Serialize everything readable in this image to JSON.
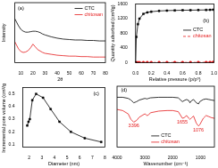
{
  "chart_data": [
    {
      "type": "line",
      "x": [
        5,
        8,
        10,
        12,
        14,
        16,
        18,
        20,
        22,
        24,
        26,
        28,
        30,
        35,
        40,
        45,
        50,
        55,
        60,
        65,
        70,
        75,
        80
      ],
      "series": [
        {
          "name": "CTC",
          "color": "#000000",
          "values": [
            95,
            80,
            72,
            68,
            66,
            66,
            67,
            68,
            68,
            67,
            65,
            62,
            60,
            56,
            53,
            51,
            50,
            49,
            49,
            48,
            48,
            47,
            47
          ]
        },
        {
          "name": "chitosan",
          "color": "#e41a1c",
          "values": [
            45,
            30,
            24,
            22,
            23,
            26,
            32,
            40,
            34,
            28,
            25,
            22,
            20,
            18,
            16,
            15,
            14,
            14,
            13,
            13,
            12,
            12,
            12
          ]
        }
      ],
      "x_label": "2θ",
      "y_label": "Intensity",
      "xlim": [
        5,
        80
      ],
      "xticks": [
        10,
        20,
        30,
        40,
        50,
        60,
        70,
        80
      ],
      "ylim": [
        0,
        130
      ],
      "tick_labels": "x",
      "legend": "upper right",
      "grid": false,
      "annotations": [
        {
          "text": "(a)",
          "x": 10,
          "y": 118
        }
      ]
    },
    {
      "type": "line",
      "x": [
        0,
        0.01,
        0.03,
        0.05,
        0.1,
        0.15,
        0.2,
        0.3,
        0.4,
        0.5,
        0.6,
        0.7,
        0.8,
        0.9,
        0.95,
        0.99
      ],
      "series": [
        {
          "name": "CTC",
          "color": "#000000",
          "marker": "square",
          "values": [
            0,
            700,
            1050,
            1200,
            1330,
            1370,
            1390,
            1410,
            1420,
            1425,
            1430,
            1432,
            1435,
            1438,
            1440,
            1445
          ]
        },
        {
          "name": "chitosan",
          "color": "#e41a1c",
          "marker": "circle",
          "line_style": "dashed",
          "values": [
            0,
            2,
            3,
            3,
            4,
            4,
            4,
            5,
            5,
            5,
            6,
            6,
            7,
            8,
            9,
            12
          ]
        }
      ],
      "x_label": "Relative pressure (p/p⁰)",
      "y_label": "Quantity adsorbed (cm³/g)",
      "xlim": [
        0,
        1
      ],
      "xticks": [
        {
          "value": 0,
          "label": "0.0"
        },
        0.2,
        0.4,
        0.6,
        0.8,
        {
          "value": 1,
          "label": "1.0"
        }
      ],
      "ylim": [
        0,
        1600
      ],
      "yticks": [
        0,
        400,
        800,
        1200,
        1600
      ],
      "legend": "center right",
      "grid": false,
      "annotations": [
        {
          "text": "(b)",
          "x": 0.9,
          "y": 1150
        }
      ]
    },
    {
      "type": "line",
      "x": [
        1.85,
        1.95,
        2.05,
        2.25,
        2.55,
        3.1,
        3.7,
        4.4,
        5.3,
        6.4,
        7.7
      ],
      "series": [
        {
          "color": "#000000",
          "marker": "square",
          "values": [
            0.25,
            0.28,
            0.3,
            0.45,
            0.5,
            0.47,
            0.38,
            0.28,
            0.2,
            0.15,
            0.12
          ]
        }
      ],
      "x_label": "Diameter (nm)",
      "y_label": "Incremental pore volume (cm³/g)",
      "xlim": [
        1.5,
        8
      ],
      "xticks": [
        2,
        3,
        4,
        5,
        6,
        7,
        8
      ],
      "ylim": [
        0.08,
        0.55
      ],
      "yticks": [
        0.1,
        0.2,
        0.3,
        0.4,
        0.5
      ],
      "grid": false,
      "annotations": [
        {
          "text": "(c)",
          "x": 7.3,
          "y": 0.5
        }
      ]
    },
    {
      "type": "line",
      "x": [
        4000,
        3800,
        3600,
        3500,
        3400,
        3300,
        3200,
        3000,
        2920,
        2870,
        2800,
        2500,
        2200,
        2000,
        1800,
        1650,
        1590,
        1500,
        1420,
        1380,
        1320,
        1250,
        1150,
        1070,
        1030,
        900,
        800,
        700,
        600,
        500
      ],
      "series": [
        {
          "name": "CTC",
          "color": "#000000",
          "values": [
            90,
            90,
            88,
            85,
            80,
            82,
            85,
            88,
            87,
            88,
            89,
            90,
            90,
            90,
            89,
            82,
            84,
            86,
            84,
            80,
            84,
            86,
            80,
            78,
            82,
            86,
            87,
            86,
            85,
            84
          ]
        },
        {
          "name": "chitosan",
          "color": "#e41a1c",
          "values": [
            68,
            66,
            60,
            50,
            45,
            48,
            54,
            60,
            57,
            58,
            62,
            65,
            66,
            66,
            64,
            52,
            53,
            57,
            52,
            50,
            53,
            56,
            43,
            38,
            40,
            52,
            57,
            55,
            53,
            52
          ]
        }
      ],
      "x_label": "Wavenumber (cm⁻¹)",
      "xlim": [
        4000,
        500
      ],
      "xticks": [
        4000,
        3000,
        2000,
        1000
      ],
      "ylim": [
        0,
        110
      ],
      "tick_labels": "x",
      "legend": "lower center",
      "grid": false,
      "annotations": [
        {
          "text": "(d)",
          "x": 3750,
          "y": 102
        },
        {
          "text": "3396",
          "x": 3400,
          "y": 38,
          "color": "#e41a1c"
        },
        {
          "text": "1655",
          "x": 1655,
          "y": 45,
          "color": "#e41a1c"
        },
        {
          "text": "1076",
          "x": 1076,
          "y": 31,
          "color": "#e41a1c"
        }
      ]
    }
  ]
}
